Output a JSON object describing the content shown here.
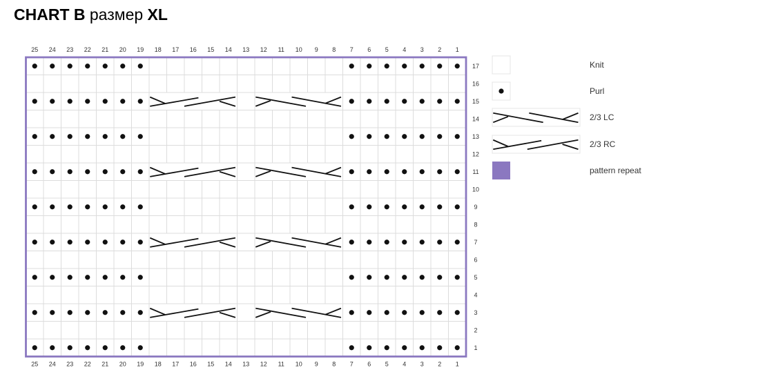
{
  "title": {
    "part1": "CHART B",
    "part2": " размер ",
    "part3": "XL"
  },
  "colors": {
    "repeat": "#8b78c0",
    "grid": "#dcdcdc",
    "stitch": "#111111"
  },
  "columns": [
    25,
    24,
    23,
    22,
    21,
    20,
    19,
    18,
    17,
    16,
    15,
    14,
    13,
    12,
    11,
    10,
    9,
    8,
    7,
    6,
    5,
    4,
    3,
    2,
    1
  ],
  "rows": [
    {
      "row": 17,
      "stitches": [
        "P",
        "P",
        "P",
        "P",
        "P",
        "P",
        "P",
        "K",
        "K",
        "K",
        "K",
        "K",
        "K",
        "K",
        "K",
        "K",
        "K",
        "K",
        "P",
        "P",
        "P",
        "P",
        "P",
        "P",
        "P"
      ]
    },
    {
      "row": 16,
      "stitches": [
        "K",
        "K",
        "K",
        "K",
        "K",
        "K",
        "K",
        "K",
        "K",
        "K",
        "K",
        "K",
        "K",
        "K",
        "K",
        "K",
        "K",
        "K",
        "K",
        "K",
        "K",
        "K",
        "K",
        "K",
        "K"
      ]
    },
    {
      "row": 15,
      "stitches": [
        "P",
        "P",
        "P",
        "P",
        "P",
        "P",
        "P",
        "RC",
        "K",
        "LC",
        "P",
        "P",
        "P",
        "P",
        "P",
        "P",
        "P"
      ]
    },
    {
      "row": 14,
      "stitches": [
        "K",
        "K",
        "K",
        "K",
        "K",
        "K",
        "K",
        "K",
        "K",
        "K",
        "K",
        "K",
        "K",
        "K",
        "K",
        "K",
        "K",
        "K",
        "K",
        "K",
        "K",
        "K",
        "K",
        "K",
        "K"
      ]
    },
    {
      "row": 13,
      "stitches": [
        "P",
        "P",
        "P",
        "P",
        "P",
        "P",
        "P",
        "K",
        "K",
        "K",
        "K",
        "K",
        "K",
        "K",
        "K",
        "K",
        "K",
        "K",
        "P",
        "P",
        "P",
        "P",
        "P",
        "P",
        "P"
      ]
    },
    {
      "row": 12,
      "stitches": [
        "K",
        "K",
        "K",
        "K",
        "K",
        "K",
        "K",
        "K",
        "K",
        "K",
        "K",
        "K",
        "K",
        "K",
        "K",
        "K",
        "K",
        "K",
        "K",
        "K",
        "K",
        "K",
        "K",
        "K",
        "K"
      ]
    },
    {
      "row": 11,
      "stitches": [
        "P",
        "P",
        "P",
        "P",
        "P",
        "P",
        "P",
        "RC",
        "K",
        "LC",
        "P",
        "P",
        "P",
        "P",
        "P",
        "P",
        "P"
      ]
    },
    {
      "row": 10,
      "stitches": [
        "K",
        "K",
        "K",
        "K",
        "K",
        "K",
        "K",
        "K",
        "K",
        "K",
        "K",
        "K",
        "K",
        "K",
        "K",
        "K",
        "K",
        "K",
        "K",
        "K",
        "K",
        "K",
        "K",
        "K",
        "K"
      ]
    },
    {
      "row": 9,
      "stitches": [
        "P",
        "P",
        "P",
        "P",
        "P",
        "P",
        "P",
        "K",
        "K",
        "K",
        "K",
        "K",
        "K",
        "K",
        "K",
        "K",
        "K",
        "K",
        "P",
        "P",
        "P",
        "P",
        "P",
        "P",
        "P"
      ]
    },
    {
      "row": 8,
      "stitches": [
        "K",
        "K",
        "K",
        "K",
        "K",
        "K",
        "K",
        "K",
        "K",
        "K",
        "K",
        "K",
        "K",
        "K",
        "K",
        "K",
        "K",
        "K",
        "K",
        "K",
        "K",
        "K",
        "K",
        "K",
        "K"
      ]
    },
    {
      "row": 7,
      "stitches": [
        "P",
        "P",
        "P",
        "P",
        "P",
        "P",
        "P",
        "RC",
        "K",
        "LC",
        "P",
        "P",
        "P",
        "P",
        "P",
        "P",
        "P"
      ]
    },
    {
      "row": 6,
      "stitches": [
        "K",
        "K",
        "K",
        "K",
        "K",
        "K",
        "K",
        "K",
        "K",
        "K",
        "K",
        "K",
        "K",
        "K",
        "K",
        "K",
        "K",
        "K",
        "K",
        "K",
        "K",
        "K",
        "K",
        "K",
        "K"
      ]
    },
    {
      "row": 5,
      "stitches": [
        "P",
        "P",
        "P",
        "P",
        "P",
        "P",
        "P",
        "K",
        "K",
        "K",
        "K",
        "K",
        "K",
        "K",
        "K",
        "K",
        "K",
        "K",
        "P",
        "P",
        "P",
        "P",
        "P",
        "P",
        "P"
      ]
    },
    {
      "row": 4,
      "stitches": [
        "K",
        "K",
        "K",
        "K",
        "K",
        "K",
        "K",
        "K",
        "K",
        "K",
        "K",
        "K",
        "K",
        "K",
        "K",
        "K",
        "K",
        "K",
        "K",
        "K",
        "K",
        "K",
        "K",
        "K",
        "K"
      ]
    },
    {
      "row": 3,
      "stitches": [
        "P",
        "P",
        "P",
        "P",
        "P",
        "P",
        "P",
        "RC",
        "K",
        "LC",
        "P",
        "P",
        "P",
        "P",
        "P",
        "P",
        "P"
      ]
    },
    {
      "row": 2,
      "stitches": [
        "K",
        "K",
        "K",
        "K",
        "K",
        "K",
        "K",
        "K",
        "K",
        "K",
        "K",
        "K",
        "K",
        "K",
        "K",
        "K",
        "K",
        "K",
        "K",
        "K",
        "K",
        "K",
        "K",
        "K",
        "K"
      ]
    },
    {
      "row": 1,
      "stitches": [
        "P",
        "P",
        "P",
        "P",
        "P",
        "P",
        "P",
        "K",
        "K",
        "K",
        "K",
        "K",
        "K",
        "K",
        "K",
        "K",
        "K",
        "K",
        "P",
        "P",
        "P",
        "P",
        "P",
        "P",
        "P"
      ]
    }
  ],
  "legend": [
    {
      "symbol": "K",
      "label": "Knit"
    },
    {
      "symbol": "P",
      "label": "Purl"
    },
    {
      "symbol": "LC",
      "label": "2/3 LC"
    },
    {
      "symbol": "RC",
      "label": "2/3 RC"
    },
    {
      "symbol": "repeat",
      "label": "pattern repeat"
    }
  ]
}
